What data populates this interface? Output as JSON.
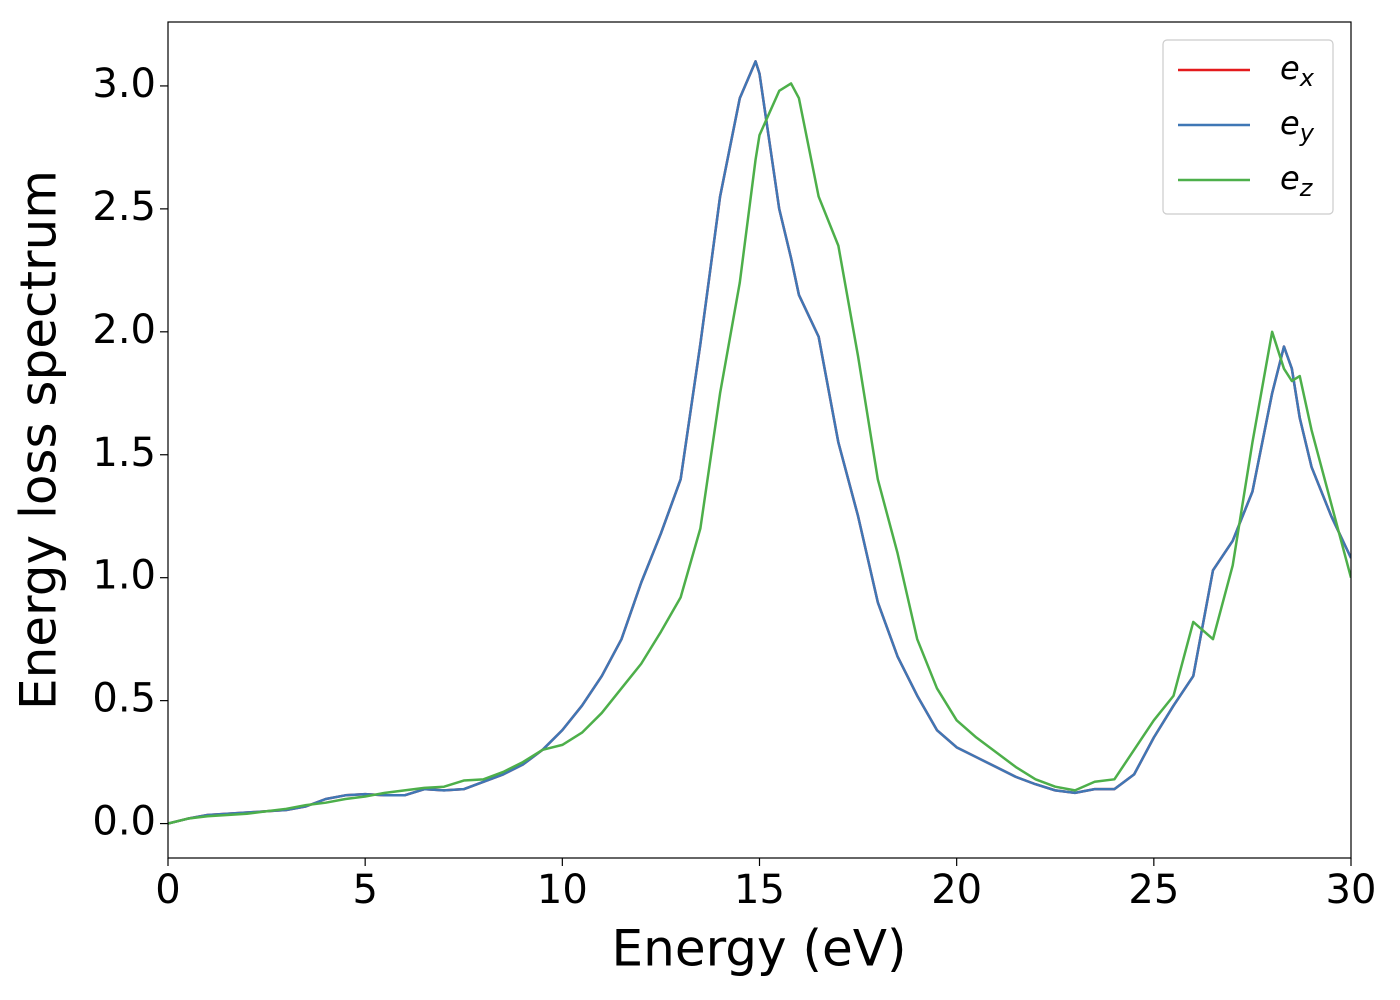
{
  "chart_data": {
    "type": "line",
    "xlabel": "Energy (eV)",
    "ylabel": "Energy loss spectrum",
    "x": [
      0,
      0.5,
      1,
      1.5,
      2,
      2.5,
      3,
      3.5,
      4,
      4.5,
      5,
      5.5,
      6,
      6.5,
      7,
      7.5,
      8,
      8.5,
      9,
      9.5,
      10,
      10.5,
      11,
      11.5,
      12,
      12.5,
      13,
      13.5,
      14,
      14.5,
      14.9,
      15,
      15.5,
      15.8,
      16,
      16.5,
      17,
      17.5,
      18,
      18.5,
      19,
      19.5,
      20,
      20.5,
      21,
      21.5,
      22,
      22.5,
      23,
      23.5,
      24,
      24.5,
      25,
      25.5,
      26,
      26.5,
      27,
      27.5,
      28,
      28.3,
      28.5,
      28.7,
      29,
      29.5,
      30
    ],
    "series": [
      {
        "name": "e_x",
        "color": "#e41a1c",
        "values": [
          0,
          0.02,
          0.035,
          0.04,
          0.045,
          0.05,
          0.055,
          0.07,
          0.1,
          0.115,
          0.12,
          0.115,
          0.115,
          0.14,
          0.135,
          0.14,
          0.17,
          0.2,
          0.24,
          0.3,
          0.38,
          0.48,
          0.6,
          0.75,
          0.98,
          1.18,
          1.4,
          1.95,
          2.55,
          2.95,
          3.1,
          3.05,
          2.5,
          2.3,
          2.15,
          1.98,
          1.55,
          1.25,
          0.9,
          0.68,
          0.52,
          0.38,
          0.31,
          0.27,
          0.23,
          0.19,
          0.16,
          0.135,
          0.125,
          0.14,
          0.14,
          0.2,
          0.35,
          0.48,
          0.6,
          1.03,
          1.15,
          1.35,
          1.75,
          1.94,
          1.85,
          1.65,
          1.45,
          1.25,
          1.08
        ]
      },
      {
        "name": "e_y",
        "color": "#3f77b5",
        "values": [
          0,
          0.02,
          0.035,
          0.04,
          0.045,
          0.05,
          0.055,
          0.07,
          0.1,
          0.115,
          0.12,
          0.115,
          0.115,
          0.14,
          0.135,
          0.14,
          0.17,
          0.2,
          0.24,
          0.3,
          0.38,
          0.48,
          0.6,
          0.75,
          0.98,
          1.18,
          1.4,
          1.95,
          2.55,
          2.95,
          3.1,
          3.05,
          2.5,
          2.3,
          2.15,
          1.98,
          1.55,
          1.25,
          0.9,
          0.68,
          0.52,
          0.38,
          0.31,
          0.27,
          0.23,
          0.19,
          0.16,
          0.135,
          0.125,
          0.14,
          0.14,
          0.2,
          0.35,
          0.48,
          0.6,
          1.03,
          1.15,
          1.35,
          1.75,
          1.94,
          1.85,
          1.65,
          1.45,
          1.25,
          1.08
        ]
      },
      {
        "name": "e_z",
        "color": "#4daf4a",
        "values": [
          0,
          0.02,
          0.03,
          0.035,
          0.04,
          0.05,
          0.06,
          0.075,
          0.085,
          0.1,
          0.11,
          0.125,
          0.135,
          0.145,
          0.15,
          0.175,
          0.18,
          0.21,
          0.25,
          0.3,
          0.32,
          0.37,
          0.45,
          0.55,
          0.65,
          0.78,
          0.92,
          1.2,
          1.75,
          2.2,
          2.7,
          2.8,
          2.98,
          3.01,
          2.95,
          2.55,
          2.35,
          1.9,
          1.4,
          1.1,
          0.75,
          0.55,
          0.42,
          0.35,
          0.29,
          0.23,
          0.18,
          0.15,
          0.135,
          0.17,
          0.18,
          0.3,
          0.42,
          0.52,
          0.82,
          0.75,
          1.05,
          1.55,
          2.0,
          1.85,
          1.8,
          1.82,
          1.6,
          1.3,
          1.0
        ]
      }
    ],
    "xlim": [
      0,
      30
    ],
    "xticks": [
      0,
      5,
      10,
      15,
      20,
      25,
      30
    ],
    "ylim": [
      -0.14,
      3.26
    ],
    "yticks": [
      {
        "value": 0,
        "label": "0.0"
      },
      0.5,
      {
        "value": 1,
        "label": "1.0"
      },
      1.5,
      {
        "value": 2,
        "label": "2.0"
      },
      2.5,
      {
        "value": 3,
        "label": "3.0"
      }
    ],
    "grid": false,
    "legend": "upper right"
  }
}
